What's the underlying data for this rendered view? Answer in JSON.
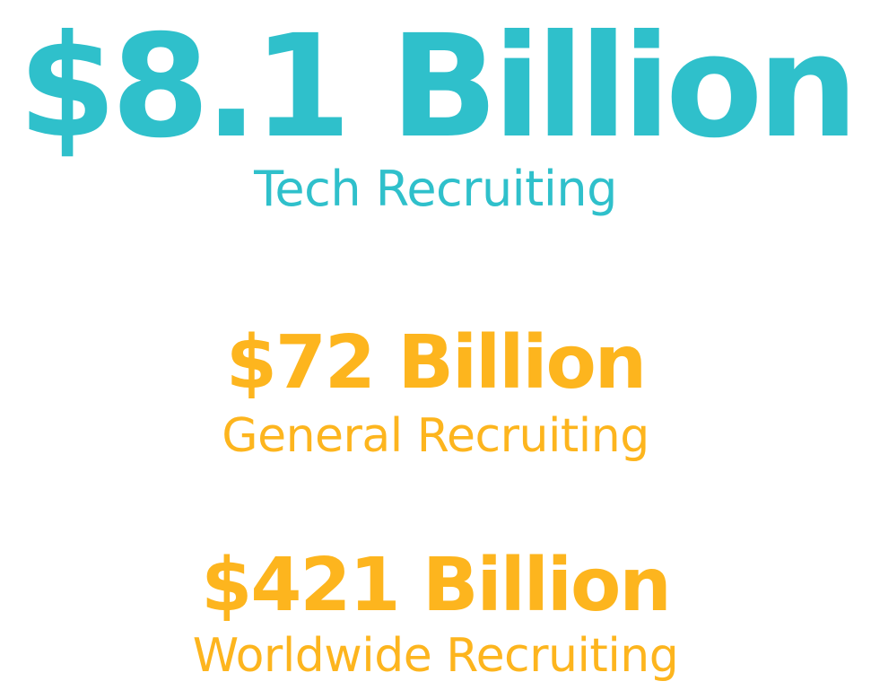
{
  "stats": [
    {
      "amount": "$8.1 Billion",
      "label": "Tech Recruiting",
      "color": "#2FC0CB"
    },
    {
      "amount": "$72 Billion",
      "label": "General Recruiting",
      "color": "#FDB51E"
    },
    {
      "amount": "$421 Billion",
      "label": "Worldwide Recruiting",
      "color": "#FDB51E"
    }
  ]
}
